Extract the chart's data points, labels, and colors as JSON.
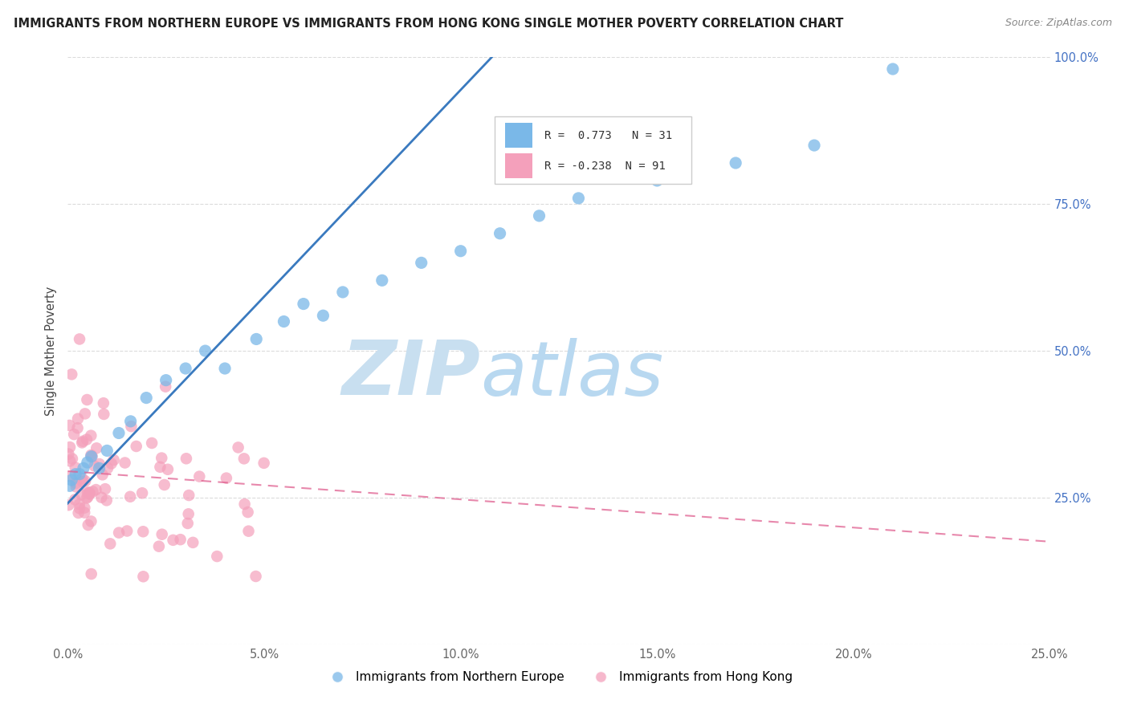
{
  "title": "IMMIGRANTS FROM NORTHERN EUROPE VS IMMIGRANTS FROM HONG KONG SINGLE MOTHER POVERTY CORRELATION CHART",
  "source": "Source: ZipAtlas.com",
  "xlabel_label": "Immigrants from Northern Europe",
  "xlabel_label2": "Immigrants from Hong Kong",
  "ylabel": "Single Mother Poverty",
  "xlim": [
    0.0,
    0.25
  ],
  "ylim": [
    0.0,
    1.0
  ],
  "R_blue": 0.773,
  "N_blue": 31,
  "R_pink": -0.238,
  "N_pink": 91,
  "blue_color": "#7ab8e8",
  "pink_color": "#f4a0bb",
  "trend_blue_color": "#3a7abf",
  "trend_pink_color": "#e06090",
  "watermark_ZIP": "ZIP",
  "watermark_atlas": "atlas",
  "watermark_color_ZIP": "#c8dff0",
  "watermark_color_atlas": "#b8d8f0",
  "grid_color": "#d8d8d8",
  "tick_color_y": "#4472c4",
  "tick_color_x": "#666666",
  "title_color": "#222222",
  "source_color": "#888888",
  "ylabel_color": "#444444"
}
